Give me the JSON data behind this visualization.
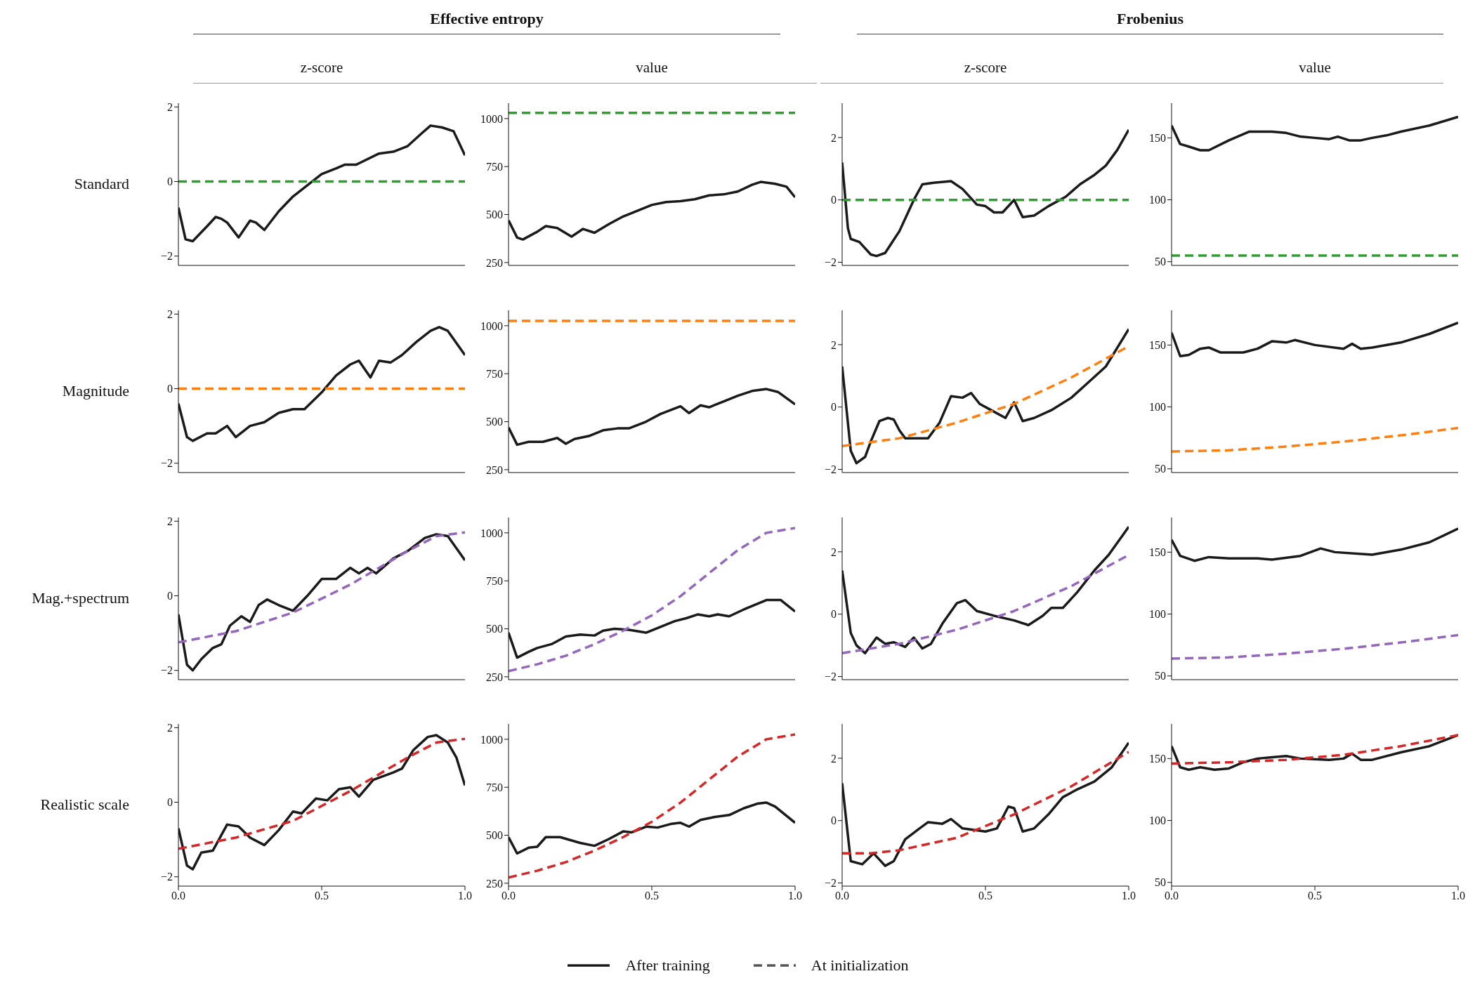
{
  "chart_data": [
    {
      "type": "line",
      "title": "Effective entropy",
      "subtitle": "z-score",
      "ylabel": "Standard",
      "legend": "bottom",
      "tick_labels": "y",
      "xlim": [
        0,
        1
      ],
      "ylim": [
        -2.25,
        2.1
      ],
      "yticks": [
        -2,
        0,
        2
      ],
      "series": [
        {
          "name": "After training",
          "color": "#1a1a1a",
          "line_style": "solid",
          "x": [
            0,
            0.025,
            0.05,
            0.1,
            0.13,
            0.15,
            0.17,
            0.21,
            0.25,
            0.27,
            0.3,
            0.35,
            0.4,
            0.45,
            0.5,
            0.55,
            0.58,
            0.62,
            0.7,
            0.75,
            0.8,
            0.85,
            0.88,
            0.92,
            0.96,
            1
          ],
          "values": [
            -0.7,
            -1.55,
            -1.6,
            -1.2,
            -0.95,
            -1,
            -1.1,
            -1.5,
            -1.05,
            -1.1,
            -1.3,
            -0.8,
            -0.4,
            -0.1,
            0.2,
            0.35,
            0.45,
            0.45,
            0.75,
            0.8,
            0.95,
            1.3,
            1.5,
            1.45,
            1.35,
            0.7
          ]
        },
        {
          "name": "At initialization",
          "color": "#2ca02c",
          "line_style": "dashed",
          "x": [
            0,
            1
          ],
          "values": [
            0,
            0
          ]
        }
      ]
    },
    {
      "type": "line",
      "subtitle": "value",
      "tick_labels": "y",
      "xlim": [
        0,
        1
      ],
      "ylim": [
        235,
        1080
      ],
      "yticks": [
        250,
        500,
        750,
        1000
      ],
      "series": [
        {
          "color": "#1a1a1a",
          "line_style": "solid",
          "x": [
            0,
            0.03,
            0.05,
            0.1,
            0.13,
            0.17,
            0.22,
            0.26,
            0.3,
            0.35,
            0.4,
            0.45,
            0.5,
            0.55,
            0.6,
            0.65,
            0.7,
            0.75,
            0.8,
            0.85,
            0.88,
            0.93,
            0.97,
            1
          ],
          "values": [
            470,
            380,
            370,
            410,
            440,
            430,
            385,
            425,
            405,
            450,
            490,
            520,
            550,
            565,
            570,
            580,
            600,
            605,
            620,
            655,
            670,
            660,
            645,
            590
          ]
        },
        {
          "color": "#2ca02c",
          "line_style": "dashed",
          "x": [
            0,
            1
          ],
          "values": [
            1030,
            1030
          ]
        }
      ]
    },
    {
      "type": "line",
      "title": "Frobenius",
      "subtitle": "z-score",
      "tick_labels": "y",
      "xlim": [
        0,
        1
      ],
      "ylim": [
        -2.1,
        3.1
      ],
      "yticks": [
        -2,
        0,
        2
      ],
      "series": [
        {
          "color": "#1a1a1a",
          "line_style": "solid",
          "x": [
            0,
            0.02,
            0.03,
            0.06,
            0.1,
            0.12,
            0.15,
            0.2,
            0.25,
            0.28,
            0.32,
            0.38,
            0.42,
            0.47,
            0.5,
            0.53,
            0.56,
            0.6,
            0.63,
            0.67,
            0.72,
            0.78,
            0.83,
            0.88,
            0.92,
            0.96,
            1
          ],
          "values": [
            1.2,
            -0.9,
            -1.25,
            -1.35,
            -1.75,
            -1.8,
            -1.7,
            -1,
            0,
            0.5,
            0.55,
            0.6,
            0.35,
            -0.15,
            -0.2,
            -0.4,
            -0.4,
            0,
            -0.55,
            -0.5,
            -0.2,
            0.1,
            0.5,
            0.8,
            1.1,
            1.6,
            2.25
          ]
        },
        {
          "color": "#2ca02c",
          "line_style": "dashed",
          "x": [
            0,
            1
          ],
          "values": [
            0,
            0
          ]
        }
      ]
    },
    {
      "type": "line",
      "subtitle": "value",
      "tick_labels": "y",
      "xlim": [
        0,
        1
      ],
      "ylim": [
        47,
        178
      ],
      "yticks": [
        50,
        100,
        150
      ],
      "series": [
        {
          "color": "#1a1a1a",
          "line_style": "solid",
          "x": [
            0,
            0.03,
            0.06,
            0.1,
            0.13,
            0.2,
            0.27,
            0.35,
            0.4,
            0.45,
            0.5,
            0.55,
            0.58,
            0.62,
            0.66,
            0.7,
            0.75,
            0.8,
            0.9,
            1
          ],
          "values": [
            160,
            145,
            143,
            140,
            140,
            148,
            155,
            155,
            154,
            151,
            150,
            149,
            151,
            148,
            148,
            150,
            152,
            155,
            160,
            167
          ]
        },
        {
          "color": "#2ca02c",
          "line_style": "dashed",
          "x": [
            0,
            1
          ],
          "values": [
            55,
            55
          ]
        }
      ]
    },
    {
      "type": "line",
      "ylabel": "Magnitude",
      "tick_labels": "y",
      "xlim": [
        0,
        1
      ],
      "ylim": [
        -2.25,
        2.1
      ],
      "yticks": [
        -2,
        0,
        2
      ],
      "series": [
        {
          "color": "#1a1a1a",
          "line_style": "solid",
          "x": [
            0,
            0.03,
            0.05,
            0.1,
            0.13,
            0.17,
            0.2,
            0.25,
            0.3,
            0.35,
            0.4,
            0.44,
            0.5,
            0.55,
            0.6,
            0.63,
            0.67,
            0.7,
            0.74,
            0.78,
            0.83,
            0.88,
            0.91,
            0.94,
            1
          ],
          "values": [
            -0.4,
            -1.3,
            -1.4,
            -1.2,
            -1.2,
            -1,
            -1.3,
            -1,
            -0.9,
            -0.65,
            -0.55,
            -0.55,
            -0.1,
            0.35,
            0.65,
            0.75,
            0.3,
            0.75,
            0.7,
            0.9,
            1.25,
            1.55,
            1.65,
            1.55,
            0.9
          ]
        },
        {
          "color": "#ff7f0e",
          "line_style": "dashed",
          "x": [
            0,
            1
          ],
          "values": [
            0,
            0
          ]
        }
      ]
    },
    {
      "type": "line",
      "tick_labels": "y",
      "xlim": [
        0,
        1
      ],
      "ylim": [
        235,
        1080
      ],
      "yticks": [
        250,
        500,
        750,
        1000
      ],
      "series": [
        {
          "color": "#1a1a1a",
          "line_style": "solid",
          "x": [
            0,
            0.03,
            0.07,
            0.12,
            0.17,
            0.2,
            0.23,
            0.28,
            0.33,
            0.38,
            0.42,
            0.48,
            0.53,
            0.6,
            0.63,
            0.67,
            0.7,
            0.75,
            0.8,
            0.85,
            0.9,
            0.94,
            1
          ],
          "values": [
            470,
            380,
            395,
            395,
            415,
            385,
            410,
            425,
            455,
            465,
            465,
            500,
            540,
            580,
            545,
            585,
            575,
            605,
            635,
            660,
            670,
            655,
            590
          ]
        },
        {
          "color": "#ff7f0e",
          "line_style": "dashed",
          "x": [
            0,
            1
          ],
          "values": [
            1025,
            1025
          ]
        }
      ]
    },
    {
      "type": "line",
      "tick_labels": "y",
      "xlim": [
        0,
        1
      ],
      "ylim": [
        -2.1,
        3.1
      ],
      "yticks": [
        -2,
        0,
        2
      ],
      "series": [
        {
          "color": "#1a1a1a",
          "line_style": "solid",
          "x": [
            0,
            0.03,
            0.05,
            0.08,
            0.1,
            0.13,
            0.16,
            0.18,
            0.2,
            0.22,
            0.28,
            0.3,
            0.34,
            0.38,
            0.42,
            0.45,
            0.48,
            0.52,
            0.57,
            0.6,
            0.63,
            0.67,
            0.73,
            0.8,
            0.86,
            0.92,
            1
          ],
          "values": [
            1.3,
            -1.4,
            -1.8,
            -1.6,
            -1.1,
            -0.45,
            -0.35,
            -0.4,
            -0.75,
            -1,
            -1,
            -1,
            -0.5,
            0.35,
            0.3,
            0.45,
            0.1,
            -0.1,
            -0.35,
            0.15,
            -0.45,
            -0.35,
            -0.1,
            0.3,
            0.8,
            1.3,
            2.5
          ]
        },
        {
          "color": "#ff7f0e",
          "line_style": "dashed",
          "x": [
            0,
            0.2,
            0.4,
            0.6,
            0.8,
            1
          ],
          "values": [
            -1.25,
            -1,
            -0.5,
            0.1,
            0.95,
            1.95
          ]
        }
      ]
    },
    {
      "type": "line",
      "tick_labels": "y",
      "xlim": [
        0,
        1
      ],
      "ylim": [
        47,
        178
      ],
      "yticks": [
        50,
        100,
        150
      ],
      "series": [
        {
          "color": "#1a1a1a",
          "line_style": "solid",
          "x": [
            0,
            0.03,
            0.06,
            0.1,
            0.13,
            0.17,
            0.25,
            0.3,
            0.35,
            0.4,
            0.43,
            0.5,
            0.6,
            0.63,
            0.66,
            0.7,
            0.8,
            0.9,
            1
          ],
          "values": [
            160,
            141,
            142,
            147,
            148,
            144,
            144,
            147,
            153,
            152,
            154,
            150,
            147,
            151,
            147,
            148,
            152,
            159,
            168
          ]
        },
        {
          "color": "#ff7f0e",
          "line_style": "dashed",
          "x": [
            0,
            0.2,
            0.4,
            0.6,
            0.8,
            1
          ],
          "values": [
            64,
            65,
            68,
            72,
            77,
            83
          ]
        }
      ]
    },
    {
      "type": "line",
      "ylabel": "Mag.+spectrum",
      "tick_labels": "y",
      "xlim": [
        0,
        1
      ],
      "ylim": [
        -2.25,
        2.1
      ],
      "yticks": [
        -2,
        0,
        2
      ],
      "series": [
        {
          "color": "#1a1a1a",
          "line_style": "solid",
          "x": [
            0,
            0.03,
            0.05,
            0.08,
            0.12,
            0.15,
            0.18,
            0.22,
            0.25,
            0.28,
            0.31,
            0.35,
            0.4,
            0.45,
            0.5,
            0.55,
            0.6,
            0.63,
            0.66,
            0.69,
            0.75,
            0.8,
            0.86,
            0.9,
            0.94,
            1
          ],
          "values": [
            -0.5,
            -1.85,
            -2,
            -1.7,
            -1.4,
            -1.3,
            -0.8,
            -0.55,
            -0.7,
            -0.25,
            -0.1,
            -0.25,
            -0.4,
            0,
            0.45,
            0.45,
            0.75,
            0.6,
            0.75,
            0.6,
            1,
            1.2,
            1.55,
            1.65,
            1.6,
            0.95
          ]
        },
        {
          "color": "#9467bd",
          "line_style": "dashed",
          "x": [
            0,
            0.2,
            0.4,
            0.6,
            0.8,
            0.9,
            1
          ],
          "values": [
            -1.25,
            -0.95,
            -0.45,
            0.3,
            1.2,
            1.6,
            1.7
          ]
        }
      ]
    },
    {
      "type": "line",
      "tick_labels": "y",
      "xlim": [
        0,
        1
      ],
      "ylim": [
        235,
        1080
      ],
      "yticks": [
        250,
        500,
        750,
        1000
      ],
      "series": [
        {
          "color": "#1a1a1a",
          "line_style": "solid",
          "x": [
            0,
            0.03,
            0.07,
            0.1,
            0.15,
            0.2,
            0.25,
            0.3,
            0.33,
            0.37,
            0.42,
            0.48,
            0.53,
            0.58,
            0.62,
            0.66,
            0.7,
            0.73,
            0.77,
            0.82,
            0.9,
            0.95,
            1
          ],
          "values": [
            480,
            350,
            380,
            400,
            420,
            460,
            470,
            465,
            490,
            500,
            495,
            480,
            510,
            540,
            555,
            575,
            565,
            575,
            565,
            600,
            650,
            650,
            590
          ]
        },
        {
          "color": "#9467bd",
          "line_style": "dashed",
          "x": [
            0,
            0.1,
            0.2,
            0.3,
            0.4,
            0.5,
            0.6,
            0.7,
            0.8,
            0.9,
            1
          ],
          "values": [
            280,
            315,
            360,
            420,
            490,
            570,
            670,
            790,
            910,
            1000,
            1025
          ]
        }
      ]
    },
    {
      "type": "line",
      "tick_labels": "y",
      "xlim": [
        0,
        1
      ],
      "ylim": [
        -2.1,
        3.1
      ],
      "yticks": [
        -2,
        0,
        2
      ],
      "series": [
        {
          "color": "#1a1a1a",
          "line_style": "solid",
          "x": [
            0,
            0.03,
            0.05,
            0.08,
            0.12,
            0.15,
            0.18,
            0.22,
            0.25,
            0.28,
            0.31,
            0.35,
            0.4,
            0.43,
            0.47,
            0.53,
            0.6,
            0.65,
            0.7,
            0.73,
            0.77,
            0.82,
            0.88,
            0.93,
            1
          ],
          "values": [
            1.4,
            -0.6,
            -1,
            -1.25,
            -0.75,
            -0.95,
            -0.9,
            -1.05,
            -0.75,
            -1.1,
            -0.95,
            -0.3,
            0.35,
            0.45,
            0.1,
            -0.05,
            -0.2,
            -0.35,
            -0.05,
            0.2,
            0.2,
            0.7,
            1.4,
            1.9,
            2.8
          ]
        },
        {
          "color": "#9467bd",
          "line_style": "dashed",
          "x": [
            0,
            0.2,
            0.4,
            0.6,
            0.8,
            1
          ],
          "values": [
            -1.25,
            -0.95,
            -0.5,
            0.1,
            0.9,
            1.9
          ]
        }
      ]
    },
    {
      "type": "line",
      "tick_labels": "y",
      "xlim": [
        0,
        1
      ],
      "ylim": [
        47,
        178
      ],
      "yticks": [
        50,
        100,
        150
      ],
      "series": [
        {
          "color": "#1a1a1a",
          "line_style": "solid",
          "x": [
            0,
            0.03,
            0.08,
            0.13,
            0.2,
            0.3,
            0.35,
            0.45,
            0.52,
            0.57,
            0.7,
            0.8,
            0.9,
            1
          ],
          "values": [
            160,
            147,
            143,
            146,
            145,
            145,
            144,
            147,
            153,
            150,
            148,
            152,
            158,
            169
          ]
        },
        {
          "color": "#9467bd",
          "line_style": "dashed",
          "x": [
            0,
            0.2,
            0.4,
            0.6,
            0.8,
            1
          ],
          "values": [
            64,
            65,
            68,
            72,
            77,
            83
          ]
        }
      ]
    },
    {
      "type": "line",
      "ylabel": "Realistic scale",
      "xlim": [
        0,
        1
      ],
      "xticks": [
        {
          "value": 0,
          "label": "0.0"
        },
        {
          "value": 0.5,
          "label": "0.5"
        },
        {
          "value": 1,
          "label": "1.0"
        }
      ],
      "ylim": [
        -2.25,
        2.1
      ],
      "yticks": [
        -2,
        0,
        2
      ],
      "series": [
        {
          "color": "#1a1a1a",
          "line_style": "solid",
          "x": [
            0,
            0.03,
            0.05,
            0.08,
            0.12,
            0.17,
            0.21,
            0.25,
            0.3,
            0.35,
            0.4,
            0.43,
            0.48,
            0.52,
            0.56,
            0.6,
            0.63,
            0.68,
            0.75,
            0.78,
            0.82,
            0.87,
            0.9,
            0.94,
            0.97,
            1
          ],
          "values": [
            -0.7,
            -1.7,
            -1.8,
            -1.35,
            -1.3,
            -0.6,
            -0.65,
            -0.95,
            -1.15,
            -0.75,
            -0.25,
            -0.3,
            0.1,
            0.05,
            0.35,
            0.4,
            0.15,
            0.6,
            0.8,
            0.9,
            1.4,
            1.75,
            1.8,
            1.6,
            1.2,
            0.45
          ]
        },
        {
          "color": "#d62728",
          "line_style": "dashed",
          "x": [
            0,
            0.2,
            0.4,
            0.6,
            0.8,
            0.9,
            1
          ],
          "values": [
            -1.25,
            -0.95,
            -0.5,
            0.3,
            1.2,
            1.6,
            1.7
          ]
        }
      ]
    },
    {
      "type": "line",
      "xlim": [
        0,
        1
      ],
      "xticks": [
        {
          "value": 0,
          "label": "0.0"
        },
        {
          "value": 0.5,
          "label": "0.5"
        },
        {
          "value": 1,
          "label": "1.0"
        }
      ],
      "ylim": [
        235,
        1080
      ],
      "yticks": [
        250,
        500,
        750,
        1000
      ],
      "series": [
        {
          "color": "#1a1a1a",
          "line_style": "solid",
          "x": [
            0,
            0.03,
            0.07,
            0.1,
            0.13,
            0.18,
            0.25,
            0.3,
            0.35,
            0.4,
            0.43,
            0.48,
            0.52,
            0.57,
            0.6,
            0.63,
            0.67,
            0.72,
            0.77,
            0.82,
            0.87,
            0.9,
            0.93,
            1
          ],
          "values": [
            490,
            405,
            435,
            440,
            490,
            490,
            460,
            445,
            480,
            520,
            515,
            545,
            540,
            560,
            565,
            545,
            580,
            595,
            605,
            640,
            665,
            670,
            650,
            565
          ]
        },
        {
          "color": "#d62728",
          "line_style": "dashed",
          "x": [
            0,
            0.1,
            0.2,
            0.3,
            0.4,
            0.5,
            0.6,
            0.7,
            0.8,
            0.9,
            1
          ],
          "values": [
            280,
            315,
            360,
            420,
            490,
            570,
            670,
            790,
            910,
            1000,
            1025
          ]
        }
      ]
    },
    {
      "type": "line",
      "xlim": [
        0,
        1
      ],
      "xticks": [
        {
          "value": 0,
          "label": "0.0"
        },
        {
          "value": 0.5,
          "label": "0.5"
        },
        {
          "value": 1,
          "label": "1.0"
        }
      ],
      "ylim": [
        -2.1,
        3.1
      ],
      "yticks": [
        -2,
        0,
        2
      ],
      "series": [
        {
          "color": "#1a1a1a",
          "line_style": "solid",
          "x": [
            0,
            0.03,
            0.07,
            0.11,
            0.15,
            0.18,
            0.22,
            0.27,
            0.3,
            0.35,
            0.38,
            0.42,
            0.5,
            0.54,
            0.58,
            0.6,
            0.63,
            0.67,
            0.72,
            0.77,
            0.82,
            0.88,
            0.94,
            1
          ],
          "values": [
            1.2,
            -1.3,
            -1.4,
            -1.05,
            -1.45,
            -1.3,
            -0.6,
            -0.25,
            -0.05,
            -0.1,
            0.05,
            -0.25,
            -0.35,
            -0.25,
            0.45,
            0.4,
            -0.35,
            -0.25,
            0.2,
            0.75,
            1,
            1.25,
            1.7,
            2.5
          ]
        },
        {
          "color": "#d62728",
          "line_style": "dashed",
          "x": [
            0,
            0.1,
            0.2,
            0.4,
            0.6,
            0.8,
            1
          ],
          "values": [
            -1.05,
            -1.05,
            -0.95,
            -0.55,
            0.2,
            1.1,
            2.2
          ]
        }
      ]
    },
    {
      "type": "line",
      "xlim": [
        0,
        1
      ],
      "xticks": [
        {
          "value": 0,
          "label": "0.0"
        },
        {
          "value": 0.5,
          "label": "0.5"
        },
        {
          "value": 1,
          "label": "1.0"
        }
      ],
      "ylim": [
        47,
        178
      ],
      "yticks": [
        50,
        100,
        150
      ],
      "series": [
        {
          "color": "#1a1a1a",
          "line_style": "solid",
          "x": [
            0,
            0.03,
            0.06,
            0.1,
            0.15,
            0.2,
            0.25,
            0.3,
            0.35,
            0.4,
            0.45,
            0.55,
            0.6,
            0.63,
            0.66,
            0.7,
            0.8,
            0.9,
            1
          ],
          "values": [
            160,
            143,
            141,
            143,
            141,
            142,
            147,
            150,
            151,
            152,
            150,
            149,
            150,
            154,
            149,
            149,
            155,
            160,
            169
          ]
        },
        {
          "color": "#d62728",
          "line_style": "dashed",
          "x": [
            0,
            0.2,
            0.4,
            0.6,
            0.8,
            1
          ],
          "values": [
            146,
            147,
            149,
            153,
            160,
            169
          ]
        }
      ]
    }
  ]
}
